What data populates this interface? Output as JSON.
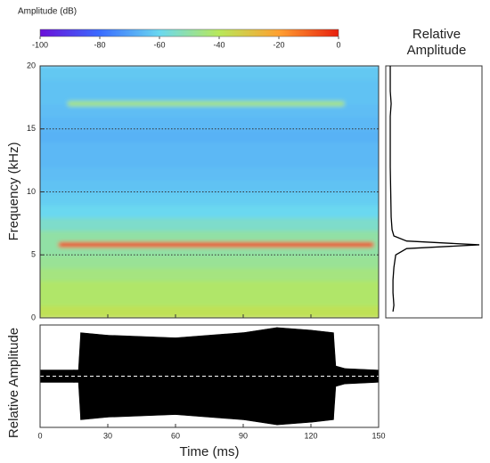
{
  "chart_data": [
    {
      "type": "colorbar",
      "title": "Amplitude (dB)",
      "xlim": [
        -100,
        0
      ],
      "xticks": [
        -100,
        -80,
        -60,
        -40,
        -20,
        0
      ],
      "colors": [
        "#6a0fd8",
        "#3a6cff",
        "#6ad8f0",
        "#b8e85a",
        "#ffa030",
        "#e8200f"
      ]
    },
    {
      "type": "spectrogram",
      "ylabel": "Frequency (kHz)",
      "xlim": [
        0,
        150
      ],
      "xticks": [
        0,
        30,
        60,
        90,
        120,
        150
      ],
      "ylim": [
        0,
        20
      ],
      "yticks": [
        0,
        5,
        10,
        15,
        20
      ],
      "grid": true,
      "y": [
        0.5,
        1.5,
        2.5,
        3.5,
        4.5,
        5.5,
        6.5,
        7.5,
        8.5,
        9.5,
        10.5,
        11.5,
        12.5,
        13.5,
        14.5,
        15.5,
        16.5,
        17.5,
        18.5,
        19.5
      ],
      "values": [
        -38,
        -42,
        -42,
        -45,
        -48,
        -50,
        -50,
        -55,
        -60,
        -62,
        -64,
        -65,
        -66,
        -66,
        -67,
        -66,
        -65,
        -64,
        -64,
        -63
      ],
      "tones": [
        {
          "frequency": 5.8,
          "start": 8,
          "end": 148,
          "value": -5
        },
        {
          "frequency": 17,
          "start": 12,
          "end": 135,
          "value": -45
        }
      ]
    },
    {
      "type": "waveform",
      "xlabel": "Time (ms)",
      "ylabel": "Relative Amplitude",
      "xlim": [
        0,
        150
      ],
      "xticks": [
        0,
        30,
        60,
        90,
        120,
        150
      ],
      "ylim": [
        -1,
        1
      ],
      "x": [
        0,
        15,
        17,
        18,
        30,
        60,
        90,
        105,
        120,
        130,
        131,
        135,
        150
      ],
      "values": [
        0.12,
        0.12,
        0.12,
        0.85,
        0.8,
        0.75,
        0.85,
        0.95,
        0.9,
        0.85,
        0.2,
        0.15,
        0.12
      ]
    },
    {
      "type": "spectrum",
      "title": "Relative Amplitude",
      "xlim": [
        0,
        1
      ],
      "ylim": [
        0,
        20
      ],
      "y": [
        0.5,
        1,
        2,
        3,
        4,
        5,
        5.5,
        5.8,
        6.1,
        6.5,
        7,
        8,
        10,
        12,
        14,
        16,
        17,
        18,
        20
      ],
      "values": [
        0.05,
        0.06,
        0.05,
        0.05,
        0.06,
        0.08,
        0.2,
        1,
        0.2,
        0.06,
        0.04,
        0.03,
        0.025,
        0.02,
        0.02,
        0.02,
        0.03,
        0.02,
        0.02
      ]
    }
  ]
}
